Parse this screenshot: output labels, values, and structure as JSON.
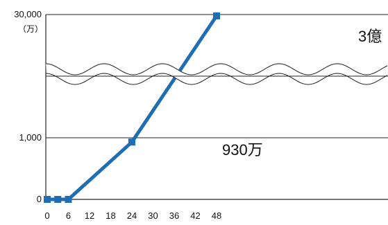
{
  "chart_data": {
    "type": "line",
    "axis_break": true,
    "grid": "horizontal-only",
    "x_ticks": [
      "0",
      "6",
      "12",
      "18",
      "24",
      "30",
      "36",
      "42",
      "48"
    ],
    "xlim": [
      0,
      48
    ],
    "y_ticks": [
      {
        "label": "0",
        "value": 0
      },
      {
        "label": "1,000",
        "value": 1000
      },
      {
        "label": "30,000",
        "value": 30000
      }
    ],
    "y_unit": "（万）",
    "series": [
      {
        "color": "#1f6db3",
        "marker": "square",
        "points": [
          {
            "x": 0,
            "y": 0
          },
          {
            "x": 3,
            "y": 0
          },
          {
            "x": 6,
            "y": 0
          },
          {
            "x": 24,
            "y": 930
          },
          {
            "x": 48,
            "y": 30000
          }
        ]
      }
    ],
    "annotations": [
      {
        "text": "930万",
        "x": 24,
        "y": 930
      },
      {
        "text": "3億",
        "x": 48,
        "y": 30000
      }
    ]
  }
}
